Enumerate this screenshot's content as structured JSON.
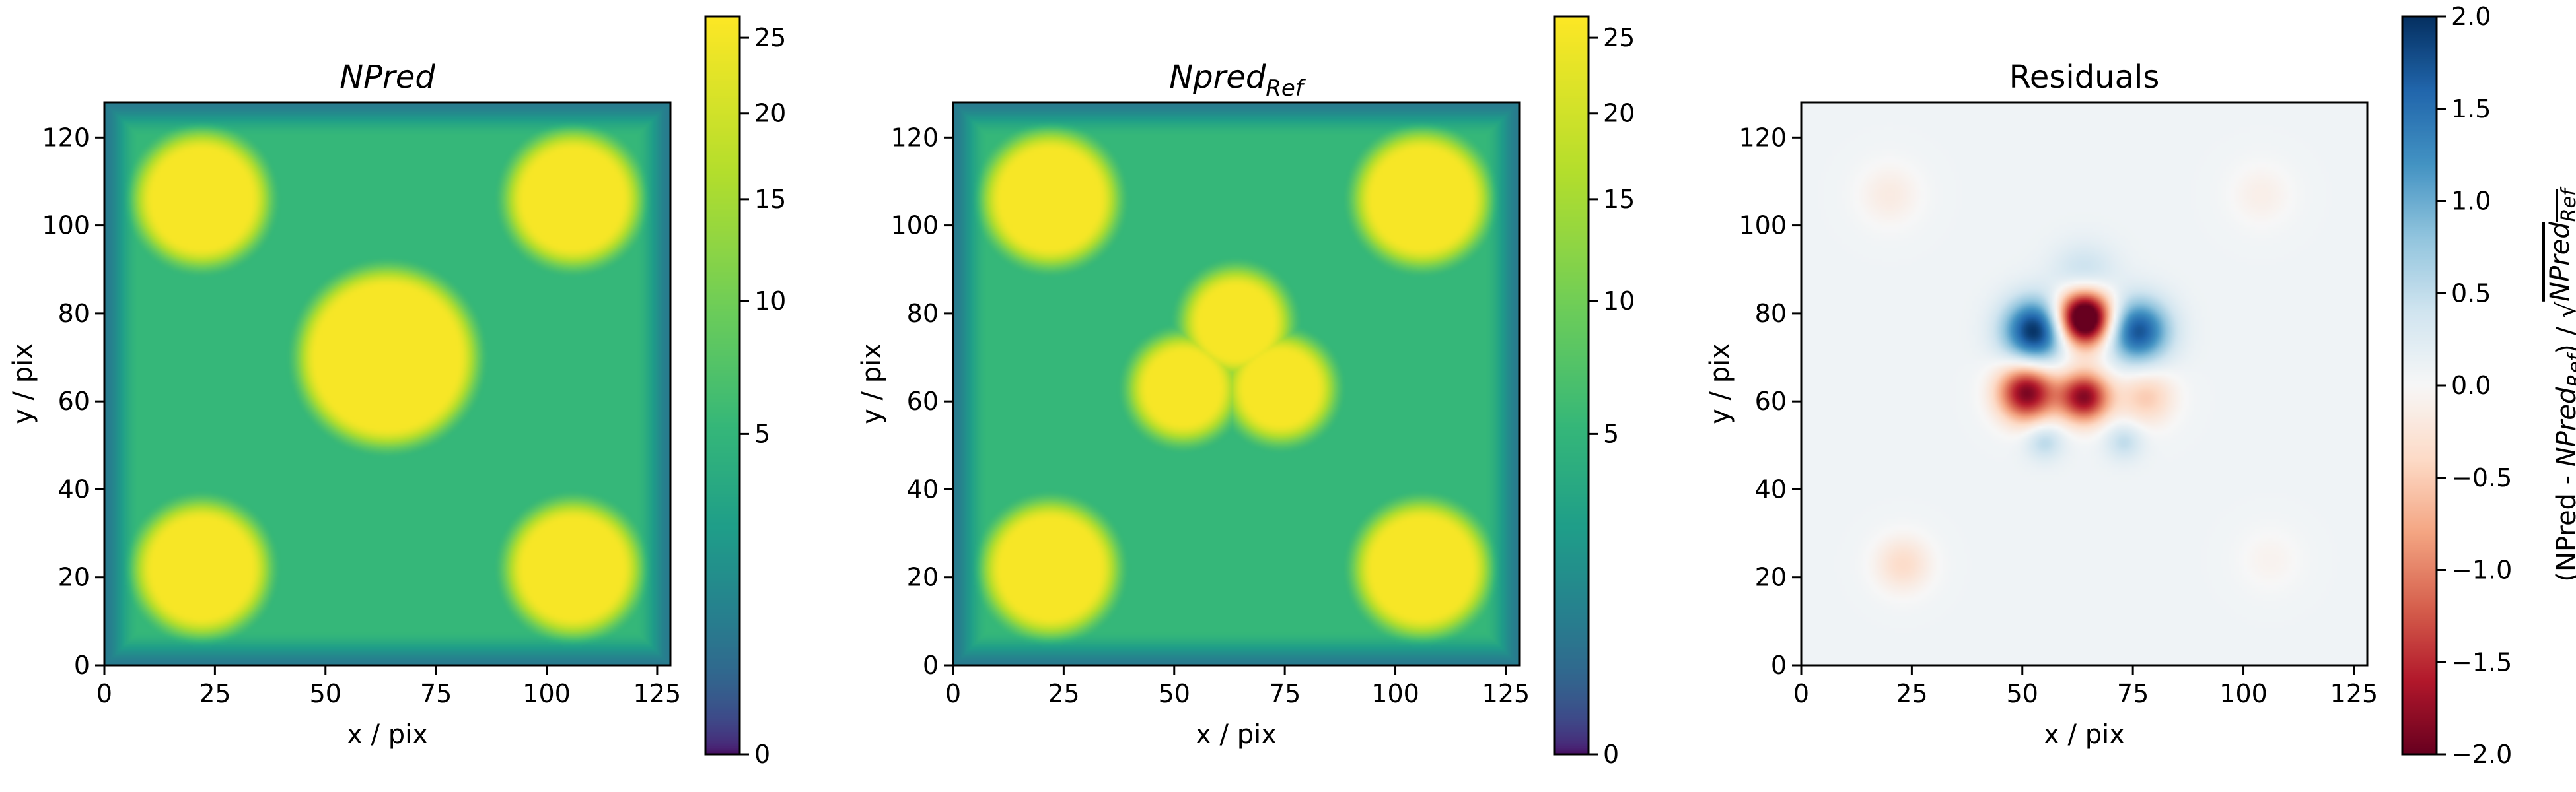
{
  "chart_data": [
    {
      "type": "heatmap",
      "title": "NPred",
      "title_italic": true,
      "xlabel": "x / pix",
      "ylabel": "y / pix",
      "xlim": [
        0,
        128
      ],
      "ylim": [
        0,
        128
      ],
      "xticks": [
        "0",
        "25",
        "50",
        "75",
        "100",
        "125"
      ],
      "yticks": [
        "0",
        "20",
        "40",
        "60",
        "80",
        "100",
        "120"
      ],
      "colormap": "viridis",
      "color_scale": "sqrt",
      "colorbar": {
        "vmin": 0,
        "vmax": 26.5,
        "ticks": [
          "0",
          "5",
          "10",
          "15",
          "20",
          "25"
        ]
      },
      "background_value": 11.8,
      "edge_value": 4.5,
      "sources": [
        {
          "x": 22,
          "y": 106,
          "r": 14,
          "value": 26
        },
        {
          "x": 106,
          "y": 106,
          "r": 14,
          "value": 26
        },
        {
          "x": 22,
          "y": 22,
          "r": 14,
          "value": 26
        },
        {
          "x": 106,
          "y": 22,
          "r": 14,
          "value": 26
        },
        {
          "x": 64,
          "y": 70,
          "r": 19,
          "value": 26
        }
      ]
    },
    {
      "type": "heatmap",
      "title": "Npred",
      "title_subscript": "Ref",
      "title_italic": true,
      "xlabel": "x / pix",
      "ylabel": "y / pix",
      "xlim": [
        0,
        128
      ],
      "ylim": [
        0,
        128
      ],
      "xticks": [
        "0",
        "25",
        "50",
        "75",
        "100",
        "125"
      ],
      "yticks": [
        "0",
        "20",
        "40",
        "60",
        "80",
        "100",
        "120"
      ],
      "colormap": "viridis",
      "color_scale": "sqrt",
      "colorbar": {
        "vmin": 0,
        "vmax": 26.5,
        "ticks": [
          "0",
          "5",
          "10",
          "15",
          "20",
          "25"
        ]
      },
      "background_value": 11.8,
      "edge_value": 4.5,
      "sources": [
        {
          "x": 22,
          "y": 106,
          "r": 14,
          "value": 26
        },
        {
          "x": 106,
          "y": 106,
          "r": 14,
          "value": 26
        },
        {
          "x": 22,
          "y": 22,
          "r": 14,
          "value": 26
        },
        {
          "x": 106,
          "y": 22,
          "r": 14,
          "value": 26
        },
        {
          "x": 64,
          "y": 78,
          "r": 11,
          "value": 26
        },
        {
          "x": 52,
          "y": 63,
          "r": 11,
          "value": 26
        },
        {
          "x": 74,
          "y": 63,
          "r": 11,
          "value": 26
        }
      ]
    },
    {
      "type": "heatmap",
      "title": "Residuals",
      "xlabel": "x / pix",
      "ylabel": "y / pix",
      "xlim": [
        0,
        128
      ],
      "ylim": [
        0,
        128
      ],
      "xticks": [
        "0",
        "25",
        "50",
        "75",
        "100",
        "125"
      ],
      "yticks": [
        "0",
        "20",
        "40",
        "60",
        "80",
        "100",
        "120"
      ],
      "colormap": "RdBu",
      "color_scale": "linear",
      "colorbar": {
        "vmin": -2.0,
        "vmax": 2.0,
        "ticks": [
          "−2.0",
          "−1.5",
          "−1.0",
          "−0.5",
          "0.0",
          "0.5",
          "1.0",
          "1.5",
          "2.0"
        ],
        "label_parts": [
          "(NPred - ",
          "NPred",
          "Ref",
          ") / √",
          "NPred",
          "Ref"
        ]
      },
      "background_value": 0.08,
      "features": [
        {
          "x": 64,
          "y": 79,
          "sigma": 4.5,
          "value": -3.0
        },
        {
          "x": 51,
          "y": 62,
          "sigma": 4.5,
          "value": -2.0
        },
        {
          "x": 64,
          "y": 61,
          "sigma": 4.0,
          "value": -1.9
        },
        {
          "x": 78,
          "y": 61,
          "sigma": 4.5,
          "value": -0.6
        },
        {
          "x": 53,
          "y": 76,
          "sigma": 5.0,
          "value": 2.0
        },
        {
          "x": 76,
          "y": 76,
          "sigma": 5.0,
          "value": 1.7
        },
        {
          "x": 64,
          "y": 88,
          "sigma": 5.0,
          "value": 0.5
        },
        {
          "x": 55,
          "y": 51,
          "sigma": 3.0,
          "value": 0.5
        },
        {
          "x": 73,
          "y": 51,
          "sigma": 3.0,
          "value": 0.45
        },
        {
          "x": 20,
          "y": 107,
          "sigma": 5.0,
          "value": -0.25
        },
        {
          "x": 104,
          "y": 107,
          "sigma": 5.0,
          "value": -0.2
        },
        {
          "x": 23,
          "y": 23,
          "sigma": 4.5,
          "value": -0.45
        },
        {
          "x": 106,
          "y": 24,
          "sigma": 5.0,
          "value": -0.15
        }
      ]
    }
  ]
}
